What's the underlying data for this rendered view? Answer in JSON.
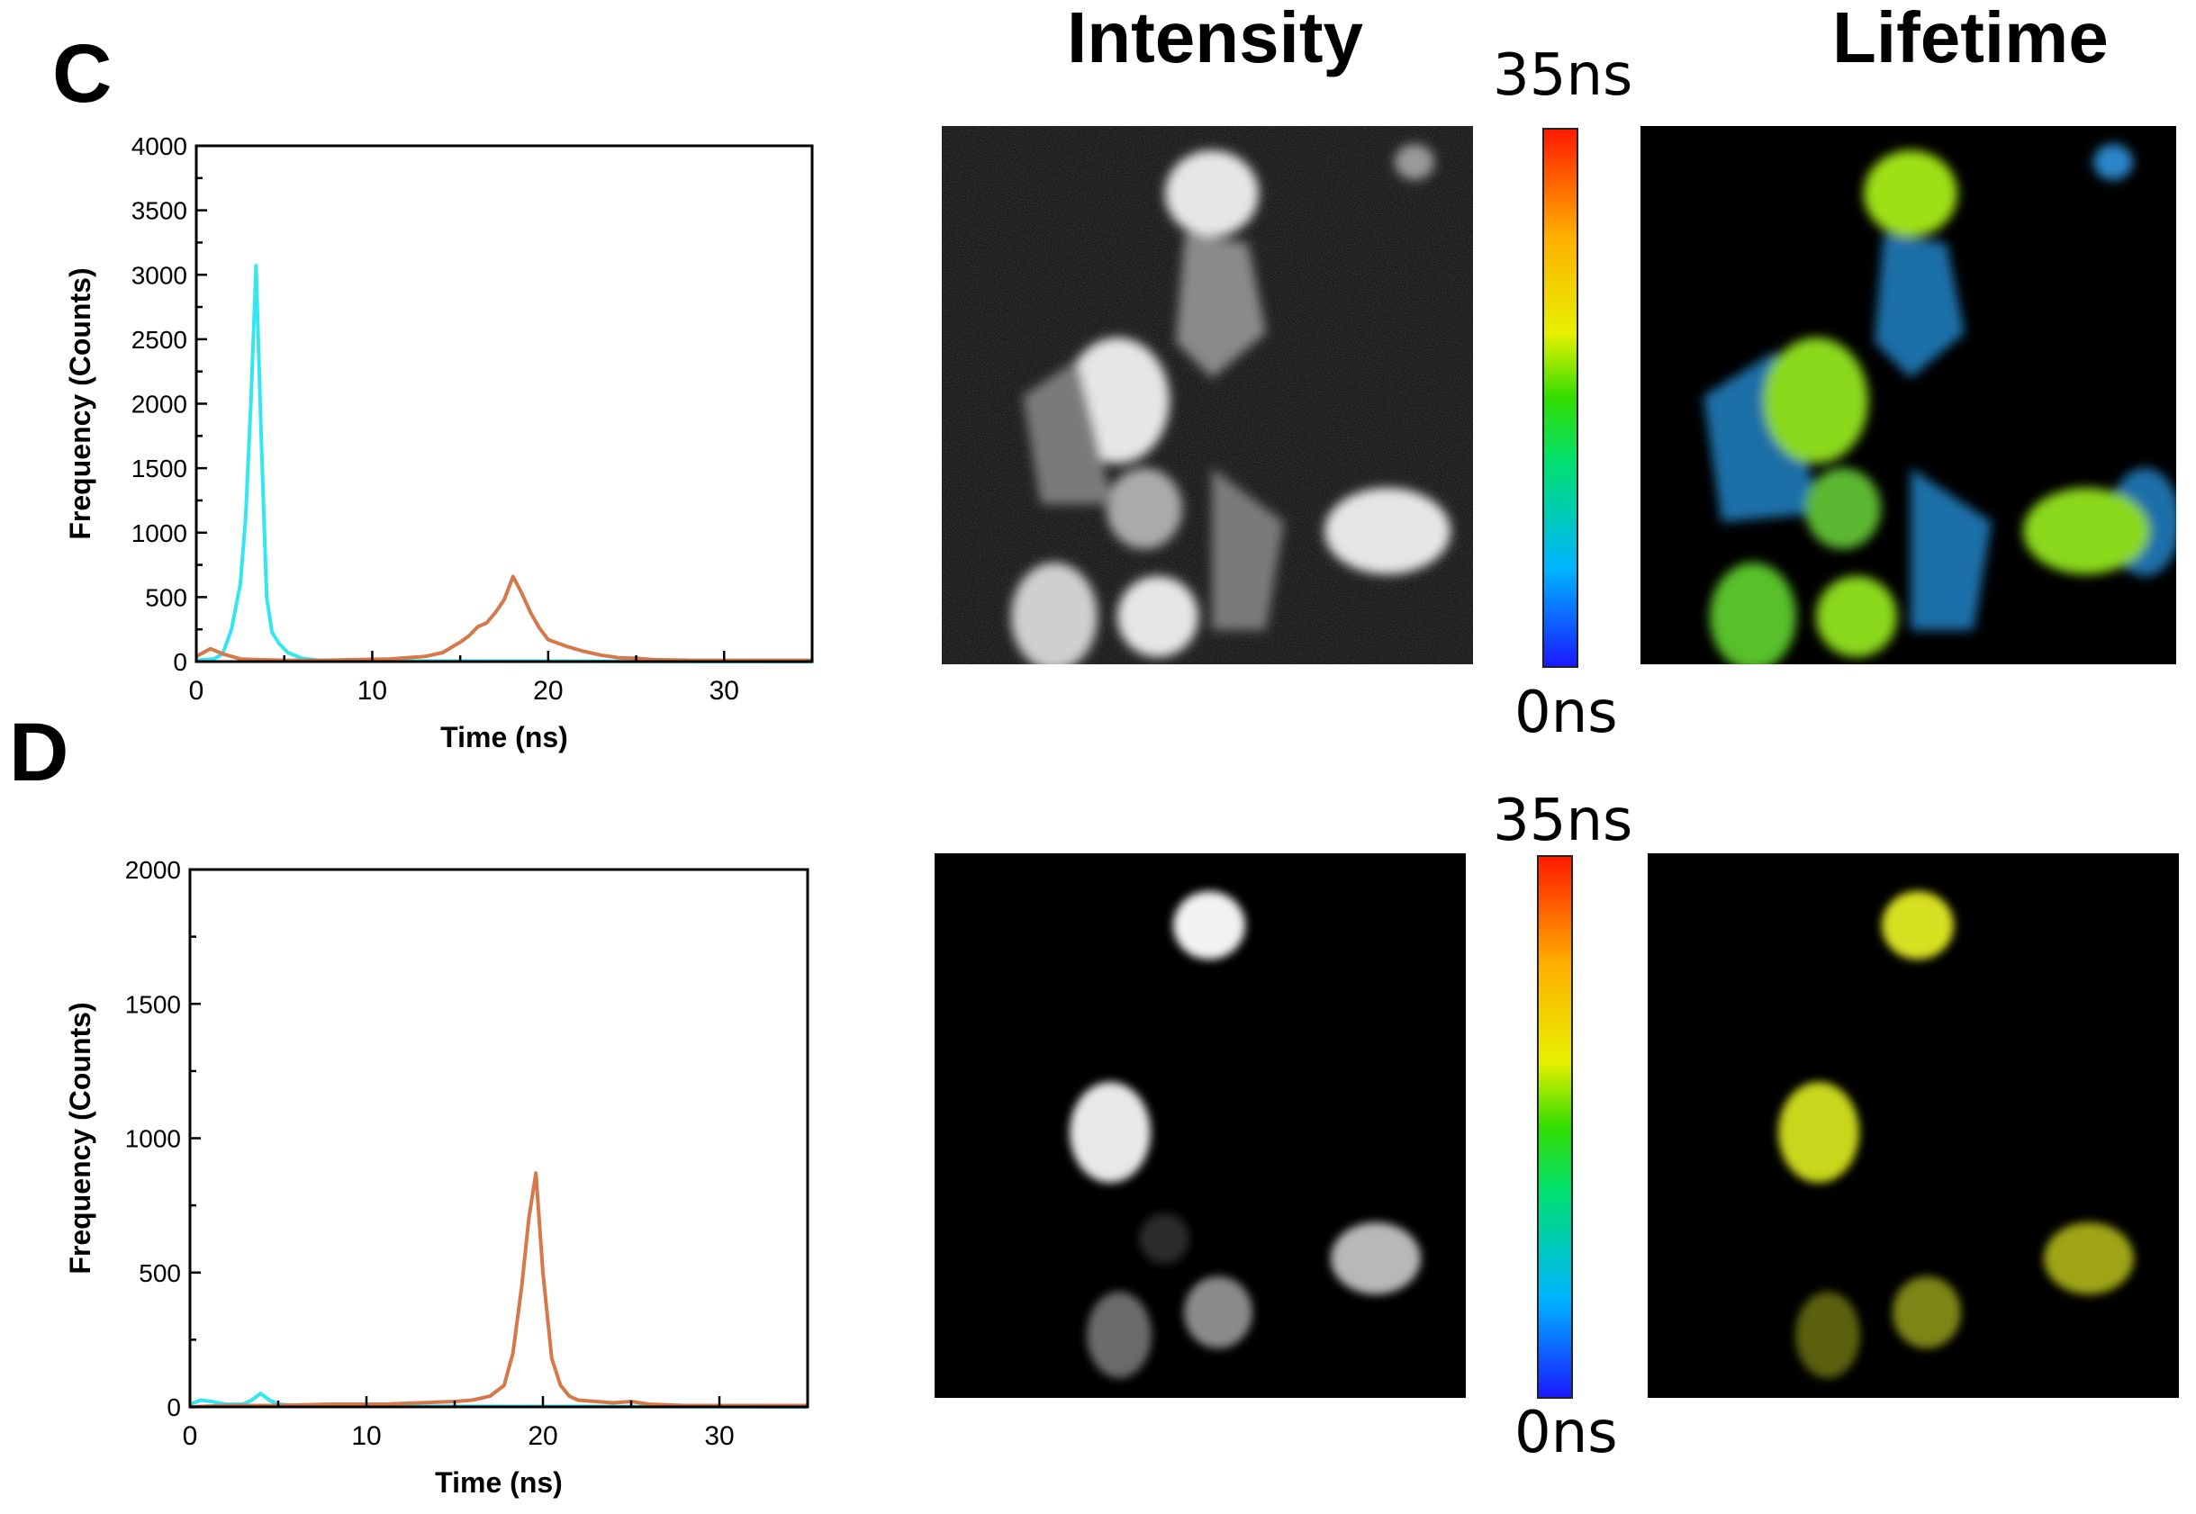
{
  "panels": [
    {
      "letter": "C",
      "headers": {
        "intensity": "Intensity",
        "lifetime": "Lifetime"
      },
      "colorbar": {
        "max_label": "35ns",
        "min_label": "0ns"
      },
      "chart_data": {
        "type": "line",
        "xlabel": "Time (ns)",
        "ylabel": "Frequency (Counts)",
        "xlim": [
          0,
          35
        ],
        "ylim": [
          0,
          4000
        ],
        "xticks": [
          0,
          10,
          20,
          30
        ],
        "yticks": [
          0,
          500,
          1000,
          1500,
          2000,
          2500,
          3000,
          3500,
          4000
        ],
        "series": [
          {
            "color": "#33e6f0",
            "x": [
              0,
              1,
              1.5,
              2,
              2.5,
              2.8,
              3.1,
              3.4,
              3.7,
              4.0,
              4.3,
              4.7,
              5.2,
              6,
              7,
              8,
              35
            ],
            "y": [
              10,
              20,
              60,
              250,
              600,
              1100,
              2000,
              3070,
              1700,
              500,
              230,
              140,
              70,
              25,
              10,
              5,
              0
            ]
          },
          {
            "color": "#d6784a",
            "x": [
              0,
              0.8,
              1.5,
              2.5,
              3.5,
              5,
              7,
              9,
              11,
              13,
              14,
              15,
              15.5,
              16,
              16.5,
              17,
              17.5,
              18,
              18.5,
              19,
              19.5,
              20,
              21,
              22,
              23,
              24,
              25,
              26,
              28,
              30,
              32,
              35
            ],
            "y": [
              40,
              100,
              60,
              20,
              15,
              10,
              10,
              15,
              20,
              40,
              70,
              150,
              200,
              270,
              300,
              380,
              480,
              660,
              530,
              380,
              260,
              170,
              120,
              80,
              50,
              30,
              25,
              15,
              10,
              10,
              10,
              10
            ]
          }
        ]
      }
    },
    {
      "letter": "D",
      "headers": {
        "intensity": "",
        "lifetime": ""
      },
      "colorbar": {
        "max_label": "35ns",
        "min_label": "0ns"
      },
      "chart_data": {
        "type": "line",
        "xlabel": "Time (ns)",
        "ylabel": "Frequency (Counts)",
        "xlim": [
          0,
          35
        ],
        "ylim": [
          0,
          2000
        ],
        "xticks": [
          0,
          10,
          20,
          30
        ],
        "yticks": [
          0,
          500,
          1000,
          1500,
          2000
        ],
        "series": [
          {
            "color": "#33e6f0",
            "x": [
              0,
              0.6,
              1.2,
              2,
              3,
              3.5,
              4,
              4.5,
              5,
              6,
              8,
              35
            ],
            "y": [
              10,
              25,
              20,
              10,
              10,
              25,
              50,
              25,
              10,
              5,
              3,
              0
            ]
          },
          {
            "color": "#d6784a",
            "x": [
              0,
              2,
              5,
              8,
              11,
              13,
              15,
              16,
              17,
              17.8,
              18.3,
              18.8,
              19.2,
              19.6,
              20.0,
              20.5,
              21,
              21.5,
              22,
              23,
              24,
              25,
              26,
              28,
              30,
              32,
              35
            ],
            "y": [
              0,
              5,
              5,
              10,
              10,
              15,
              20,
              25,
              40,
              80,
              200,
              450,
              700,
              870,
              500,
              180,
              80,
              40,
              25,
              20,
              15,
              20,
              10,
              5,
              5,
              5,
              5
            ]
          }
        ]
      }
    }
  ]
}
